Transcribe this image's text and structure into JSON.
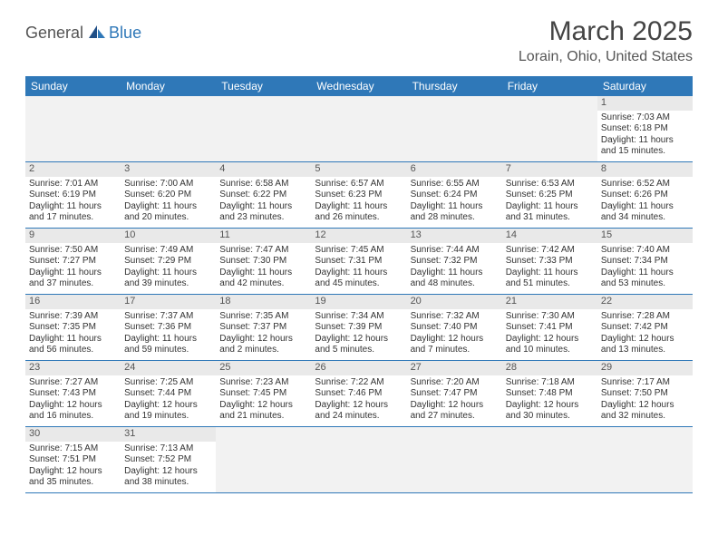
{
  "brand": {
    "general": "General",
    "blue": "Blue"
  },
  "title": "March 2025",
  "location": "Lorain, Ohio, United States",
  "colors": {
    "accent": "#2f78b8",
    "header_bg": "#2f78b8",
    "header_text": "#ffffff",
    "daynum_bg": "#e9e9e9",
    "blank_bg": "#f2f2f2",
    "text": "#333333",
    "border": "#2f78b8"
  },
  "day_names": [
    "Sunday",
    "Monday",
    "Tuesday",
    "Wednesday",
    "Thursday",
    "Friday",
    "Saturday"
  ],
  "weeks": [
    [
      null,
      null,
      null,
      null,
      null,
      null,
      {
        "n": "1",
        "sunrise": "Sunrise: 7:03 AM",
        "sunset": "Sunset: 6:18 PM",
        "daylight": "Daylight: 11 hours and 15 minutes."
      }
    ],
    [
      {
        "n": "2",
        "sunrise": "Sunrise: 7:01 AM",
        "sunset": "Sunset: 6:19 PM",
        "daylight": "Daylight: 11 hours and 17 minutes."
      },
      {
        "n": "3",
        "sunrise": "Sunrise: 7:00 AM",
        "sunset": "Sunset: 6:20 PM",
        "daylight": "Daylight: 11 hours and 20 minutes."
      },
      {
        "n": "4",
        "sunrise": "Sunrise: 6:58 AM",
        "sunset": "Sunset: 6:22 PM",
        "daylight": "Daylight: 11 hours and 23 minutes."
      },
      {
        "n": "5",
        "sunrise": "Sunrise: 6:57 AM",
        "sunset": "Sunset: 6:23 PM",
        "daylight": "Daylight: 11 hours and 26 minutes."
      },
      {
        "n": "6",
        "sunrise": "Sunrise: 6:55 AM",
        "sunset": "Sunset: 6:24 PM",
        "daylight": "Daylight: 11 hours and 28 minutes."
      },
      {
        "n": "7",
        "sunrise": "Sunrise: 6:53 AM",
        "sunset": "Sunset: 6:25 PM",
        "daylight": "Daylight: 11 hours and 31 minutes."
      },
      {
        "n": "8",
        "sunrise": "Sunrise: 6:52 AM",
        "sunset": "Sunset: 6:26 PM",
        "daylight": "Daylight: 11 hours and 34 minutes."
      }
    ],
    [
      {
        "n": "9",
        "sunrise": "Sunrise: 7:50 AM",
        "sunset": "Sunset: 7:27 PM",
        "daylight": "Daylight: 11 hours and 37 minutes."
      },
      {
        "n": "10",
        "sunrise": "Sunrise: 7:49 AM",
        "sunset": "Sunset: 7:29 PM",
        "daylight": "Daylight: 11 hours and 39 minutes."
      },
      {
        "n": "11",
        "sunrise": "Sunrise: 7:47 AM",
        "sunset": "Sunset: 7:30 PM",
        "daylight": "Daylight: 11 hours and 42 minutes."
      },
      {
        "n": "12",
        "sunrise": "Sunrise: 7:45 AM",
        "sunset": "Sunset: 7:31 PM",
        "daylight": "Daylight: 11 hours and 45 minutes."
      },
      {
        "n": "13",
        "sunrise": "Sunrise: 7:44 AM",
        "sunset": "Sunset: 7:32 PM",
        "daylight": "Daylight: 11 hours and 48 minutes."
      },
      {
        "n": "14",
        "sunrise": "Sunrise: 7:42 AM",
        "sunset": "Sunset: 7:33 PM",
        "daylight": "Daylight: 11 hours and 51 minutes."
      },
      {
        "n": "15",
        "sunrise": "Sunrise: 7:40 AM",
        "sunset": "Sunset: 7:34 PM",
        "daylight": "Daylight: 11 hours and 53 minutes."
      }
    ],
    [
      {
        "n": "16",
        "sunrise": "Sunrise: 7:39 AM",
        "sunset": "Sunset: 7:35 PM",
        "daylight": "Daylight: 11 hours and 56 minutes."
      },
      {
        "n": "17",
        "sunrise": "Sunrise: 7:37 AM",
        "sunset": "Sunset: 7:36 PM",
        "daylight": "Daylight: 11 hours and 59 minutes."
      },
      {
        "n": "18",
        "sunrise": "Sunrise: 7:35 AM",
        "sunset": "Sunset: 7:37 PM",
        "daylight": "Daylight: 12 hours and 2 minutes."
      },
      {
        "n": "19",
        "sunrise": "Sunrise: 7:34 AM",
        "sunset": "Sunset: 7:39 PM",
        "daylight": "Daylight: 12 hours and 5 minutes."
      },
      {
        "n": "20",
        "sunrise": "Sunrise: 7:32 AM",
        "sunset": "Sunset: 7:40 PM",
        "daylight": "Daylight: 12 hours and 7 minutes."
      },
      {
        "n": "21",
        "sunrise": "Sunrise: 7:30 AM",
        "sunset": "Sunset: 7:41 PM",
        "daylight": "Daylight: 12 hours and 10 minutes."
      },
      {
        "n": "22",
        "sunrise": "Sunrise: 7:28 AM",
        "sunset": "Sunset: 7:42 PM",
        "daylight": "Daylight: 12 hours and 13 minutes."
      }
    ],
    [
      {
        "n": "23",
        "sunrise": "Sunrise: 7:27 AM",
        "sunset": "Sunset: 7:43 PM",
        "daylight": "Daylight: 12 hours and 16 minutes."
      },
      {
        "n": "24",
        "sunrise": "Sunrise: 7:25 AM",
        "sunset": "Sunset: 7:44 PM",
        "daylight": "Daylight: 12 hours and 19 minutes."
      },
      {
        "n": "25",
        "sunrise": "Sunrise: 7:23 AM",
        "sunset": "Sunset: 7:45 PM",
        "daylight": "Daylight: 12 hours and 21 minutes."
      },
      {
        "n": "26",
        "sunrise": "Sunrise: 7:22 AM",
        "sunset": "Sunset: 7:46 PM",
        "daylight": "Daylight: 12 hours and 24 minutes."
      },
      {
        "n": "27",
        "sunrise": "Sunrise: 7:20 AM",
        "sunset": "Sunset: 7:47 PM",
        "daylight": "Daylight: 12 hours and 27 minutes."
      },
      {
        "n": "28",
        "sunrise": "Sunrise: 7:18 AM",
        "sunset": "Sunset: 7:48 PM",
        "daylight": "Daylight: 12 hours and 30 minutes."
      },
      {
        "n": "29",
        "sunrise": "Sunrise: 7:17 AM",
        "sunset": "Sunset: 7:50 PM",
        "daylight": "Daylight: 12 hours and 32 minutes."
      }
    ],
    [
      {
        "n": "30",
        "sunrise": "Sunrise: 7:15 AM",
        "sunset": "Sunset: 7:51 PM",
        "daylight": "Daylight: 12 hours and 35 minutes."
      },
      {
        "n": "31",
        "sunrise": "Sunrise: 7:13 AM",
        "sunset": "Sunset: 7:52 PM",
        "daylight": "Daylight: 12 hours and 38 minutes."
      },
      null,
      null,
      null,
      null,
      null
    ]
  ]
}
